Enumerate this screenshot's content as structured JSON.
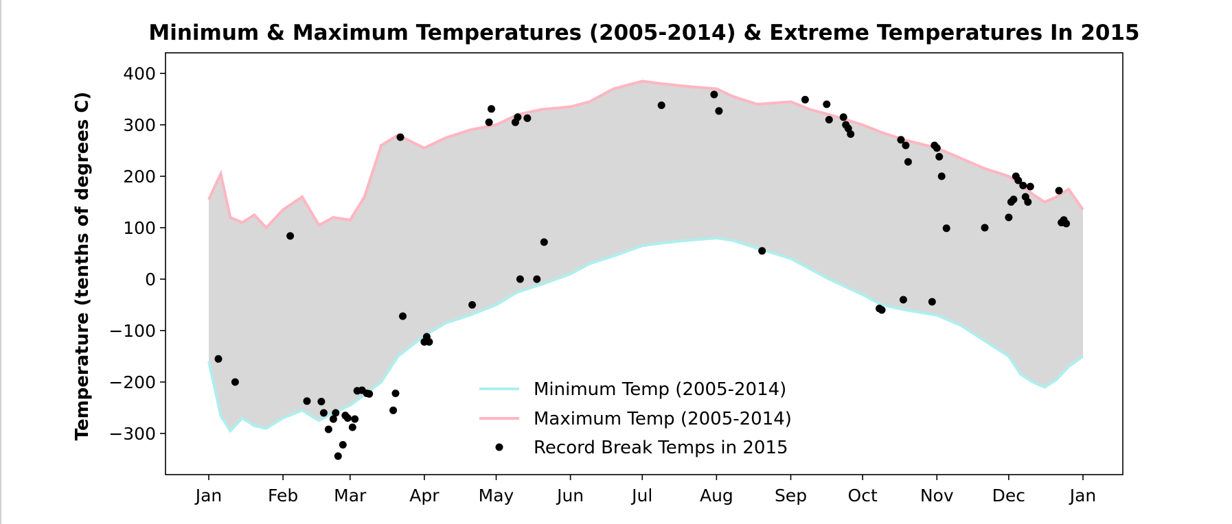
{
  "chart_data": {
    "type": "line",
    "title": "Minimum & Maximum Temperatures (2005-2014) & Extreme Temperatures In 2015",
    "ylabel": "Temperature (tenths of degrees C)",
    "xlabel": "",
    "xlim": [
      "Jan 1",
      "Jan 1 (next)"
    ],
    "ylim": [
      -380,
      440
    ],
    "yticks": [
      -300,
      -200,
      -100,
      0,
      100,
      200,
      300,
      400
    ],
    "ytick_labels": [
      "−300",
      "−200",
      "−100",
      "0",
      "100",
      "200",
      "300",
      "400"
    ],
    "xticks": [
      "Jan",
      "Feb",
      "Mar",
      "Apr",
      "May",
      "Jun",
      "Jul",
      "Aug",
      "Sep",
      "Oct",
      "Nov",
      "Dec",
      "Jan"
    ],
    "xtick_day_of_year": [
      1,
      32,
      60,
      91,
      121,
      152,
      182,
      213,
      244,
      274,
      305,
      335,
      366
    ],
    "grid": false,
    "legend": "lower-center",
    "fill_between": {
      "color": "#d8d8d8"
    },
    "series": [
      {
        "name": "Minimum Temp (2005-2014)",
        "kind": "line",
        "color": "#afeeee",
        "x_day_of_year": [
          1,
          6,
          10,
          15,
          20,
          25,
          32,
          40,
          47,
          53,
          60,
          66,
          73,
          80,
          91,
          100,
          110,
          121,
          130,
          140,
          152,
          160,
          170,
          182,
          190,
          200,
          213,
          220,
          230,
          244,
          252,
          260,
          274,
          282,
          292,
          305,
          315,
          325,
          335,
          340,
          345,
          350,
          355,
          360,
          366
        ],
        "y": [
          -160,
          -265,
          -295,
          -270,
          -285,
          -290,
          -270,
          -255,
          -275,
          -260,
          -245,
          -225,
          -200,
          -150,
          -110,
          -85,
          -70,
          -50,
          -25,
          -10,
          10,
          30,
          45,
          65,
          70,
          75,
          80,
          75,
          60,
          40,
          20,
          0,
          -30,
          -50,
          -60,
          -70,
          -90,
          -120,
          -150,
          -185,
          -200,
          -210,
          -195,
          -170,
          -150
        ]
      },
      {
        "name": "Maximum Temp (2005-2014)",
        "kind": "line",
        "color": "#ffb6c1",
        "x_day_of_year": [
          1,
          6,
          10,
          15,
          20,
          25,
          32,
          40,
          47,
          53,
          60,
          66,
          73,
          80,
          91,
          100,
          110,
          121,
          130,
          140,
          152,
          160,
          170,
          182,
          190,
          200,
          213,
          220,
          230,
          244,
          252,
          260,
          274,
          282,
          292,
          305,
          315,
          325,
          335,
          340,
          345,
          350,
          355,
          360,
          366
        ],
        "y": [
          155,
          205,
          120,
          110,
          125,
          100,
          135,
          160,
          105,
          120,
          115,
          160,
          260,
          280,
          255,
          275,
          290,
          300,
          320,
          330,
          335,
          345,
          370,
          385,
          380,
          375,
          370,
          355,
          340,
          345,
          330,
          320,
          300,
          285,
          270,
          255,
          235,
          215,
          200,
          185,
          165,
          150,
          160,
          175,
          135
        ]
      },
      {
        "name": "Record Break Temps in 2015",
        "kind": "scatter",
        "color": "#000000",
        "x_day_of_year": [
          5,
          12,
          35,
          42,
          48,
          49,
          51,
          53,
          54,
          55,
          57,
          58,
          59,
          61,
          62,
          63,
          65,
          67,
          68,
          78,
          79,
          81,
          82,
          91,
          92,
          93,
          111,
          118,
          119,
          129,
          130,
          131,
          134,
          138,
          141,
          190,
          212,
          214,
          232,
          250,
          259,
          260,
          266,
          267,
          268,
          269,
          281,
          282,
          290,
          291,
          292,
          293,
          303,
          304,
          305,
          306,
          307,
          309,
          325,
          335,
          336,
          337,
          338,
          339,
          341,
          342,
          343,
          344,
          356,
          357,
          358,
          359
        ],
        "y": [
          -155,
          -200,
          84,
          -237,
          -238,
          -260,
          -292,
          -272,
          -260,
          -344,
          -322,
          -265,
          -270,
          -288,
          -272,
          -217,
          -216,
          -222,
          -223,
          -255,
          -222,
          276,
          -72,
          -122,
          -112,
          -122,
          -50,
          305,
          331,
          305,
          315,
          0,
          313,
          0,
          72,
          338,
          359,
          327,
          55,
          349,
          340,
          310,
          315,
          300,
          293,
          282,
          -57,
          -60,
          271,
          -40,
          260,
          228,
          -44,
          260,
          255,
          238,
          200,
          99,
          100,
          120,
          150,
          155,
          200,
          192,
          182,
          160,
          150,
          180,
          172,
          110,
          115,
          108
        ]
      }
    ]
  }
}
